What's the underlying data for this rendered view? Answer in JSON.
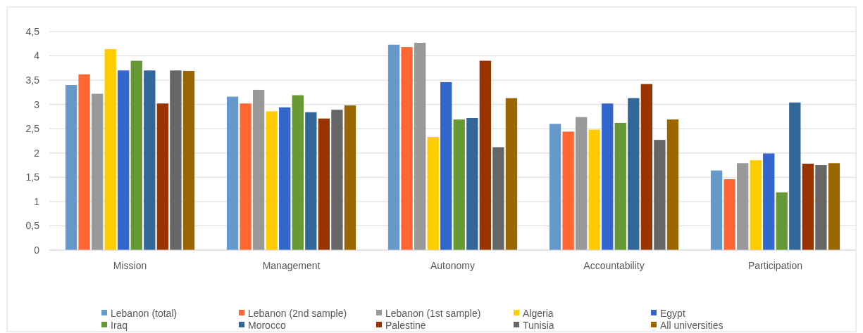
{
  "chart_data": {
    "type": "bar",
    "categories": [
      "Mission",
      "Management",
      "Autonomy",
      "Accountability",
      "Participation"
    ],
    "series": [
      {
        "name": "Lebanon (total)",
        "color": "#6699cc",
        "values": [
          3.4,
          3.16,
          4.23,
          2.6,
          1.64
        ]
      },
      {
        "name": "Lebanon (2nd sample)",
        "color": "#ff6633",
        "values": [
          3.62,
          3.02,
          4.18,
          2.44,
          1.46
        ]
      },
      {
        "name": "Lebanon (1st sample)",
        "color": "#999999",
        "values": [
          3.22,
          3.3,
          4.27,
          2.74,
          1.79
        ]
      },
      {
        "name": "Algeria",
        "color": "#ffcc00",
        "values": [
          4.14,
          2.86,
          2.33,
          2.48,
          1.85
        ]
      },
      {
        "name": "Egypt",
        "color": "#3366cc",
        "values": [
          3.7,
          2.94,
          3.46,
          3.02,
          1.99
        ]
      },
      {
        "name": "Iraq",
        "color": "#669933",
        "values": [
          3.9,
          3.19,
          2.69,
          2.62,
          1.19
        ]
      },
      {
        "name": "Morocco",
        "color": "#336699",
        "values": [
          3.7,
          2.84,
          2.72,
          3.13,
          3.04
        ]
      },
      {
        "name": "Palestine",
        "color": "#993300",
        "values": [
          3.02,
          2.71,
          3.9,
          3.42,
          1.78
        ]
      },
      {
        "name": "Tunisia",
        "color": "#666666",
        "values": [
          3.7,
          2.89,
          2.12,
          2.27,
          1.75
        ]
      },
      {
        "name": "All universities",
        "color": "#996600",
        "values": [
          3.69,
          2.98,
          3.13,
          2.69,
          1.79
        ]
      }
    ],
    "ylim": [
      0,
      4.5
    ],
    "yticks": [
      {
        "value": 0,
        "label": "0"
      },
      {
        "value": 0.5,
        "label": "0,5"
      },
      {
        "value": 1,
        "label": "1"
      },
      {
        "value": 1.5,
        "label": "1,5"
      },
      {
        "value": 2,
        "label": "2"
      },
      {
        "value": 2.5,
        "label": "2,5"
      },
      {
        "value": 3,
        "label": "3"
      },
      {
        "value": 3.5,
        "label": "3,5"
      },
      {
        "value": 4,
        "label": "4"
      },
      {
        "value": 4.5,
        "label": "4,5"
      }
    ],
    "grid": "y",
    "legend": "bottom"
  }
}
